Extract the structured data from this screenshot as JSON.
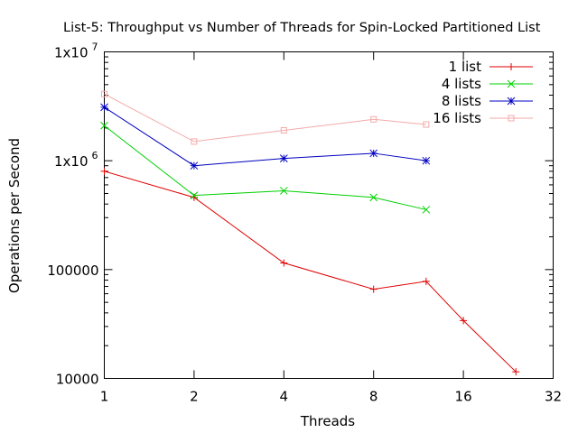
{
  "chart_data": {
    "type": "line",
    "title": "List-5: Throughput vs Number of Threads for Spin-Locked Partitioned List",
    "xlabel": "Threads",
    "ylabel": "Operations per Second",
    "xscale": "log2",
    "yscale": "log10",
    "xlim": [
      1,
      32
    ],
    "ylim": [
      10000,
      10000000
    ],
    "x_ticks": [
      {
        "value": 1,
        "label": "1"
      },
      {
        "value": 2,
        "label": "2"
      },
      {
        "value": 4,
        "label": "4"
      },
      {
        "value": 8,
        "label": "8"
      },
      {
        "value": 16,
        "label": "16"
      },
      {
        "value": 32,
        "label": "32"
      }
    ],
    "y_ticks": [
      {
        "value": 10000,
        "label": "10000",
        "sup": ""
      },
      {
        "value": 100000,
        "label": "100000",
        "sup": ""
      },
      {
        "value": 1000000,
        "label": "1x10",
        "sup": "6"
      },
      {
        "value": 10000000,
        "label": "1x10",
        "sup": "7"
      }
    ],
    "grid": false,
    "legend_position": "top-right",
    "series": [
      {
        "name": "1 list",
        "color": "#e00000",
        "marker": "plus",
        "points": [
          [
            1,
            800000
          ],
          [
            2,
            460000
          ],
          [
            4,
            115000
          ],
          [
            8,
            66000
          ],
          [
            12,
            78000
          ],
          [
            16,
            34000
          ],
          [
            24,
            11500
          ]
        ]
      },
      {
        "name": "4 lists",
        "color": "#00d000",
        "marker": "cross",
        "points": [
          [
            1,
            2100000
          ],
          [
            2,
            480000
          ],
          [
            4,
            530000
          ],
          [
            8,
            460000
          ],
          [
            12,
            355000
          ]
        ]
      },
      {
        "name": "8 lists",
        "color": "#0000c0",
        "marker": "star",
        "points": [
          [
            1,
            3100000
          ],
          [
            2,
            900000
          ],
          [
            4,
            1050000
          ],
          [
            8,
            1170000
          ],
          [
            12,
            1000000
          ]
        ]
      },
      {
        "name": "16 lists",
        "color": "#f4aaaa",
        "marker": "square",
        "points": [
          [
            1,
            4100000
          ],
          [
            2,
            1500000
          ],
          [
            4,
            1900000
          ],
          [
            8,
            2400000
          ],
          [
            12,
            2150000
          ]
        ]
      }
    ]
  }
}
